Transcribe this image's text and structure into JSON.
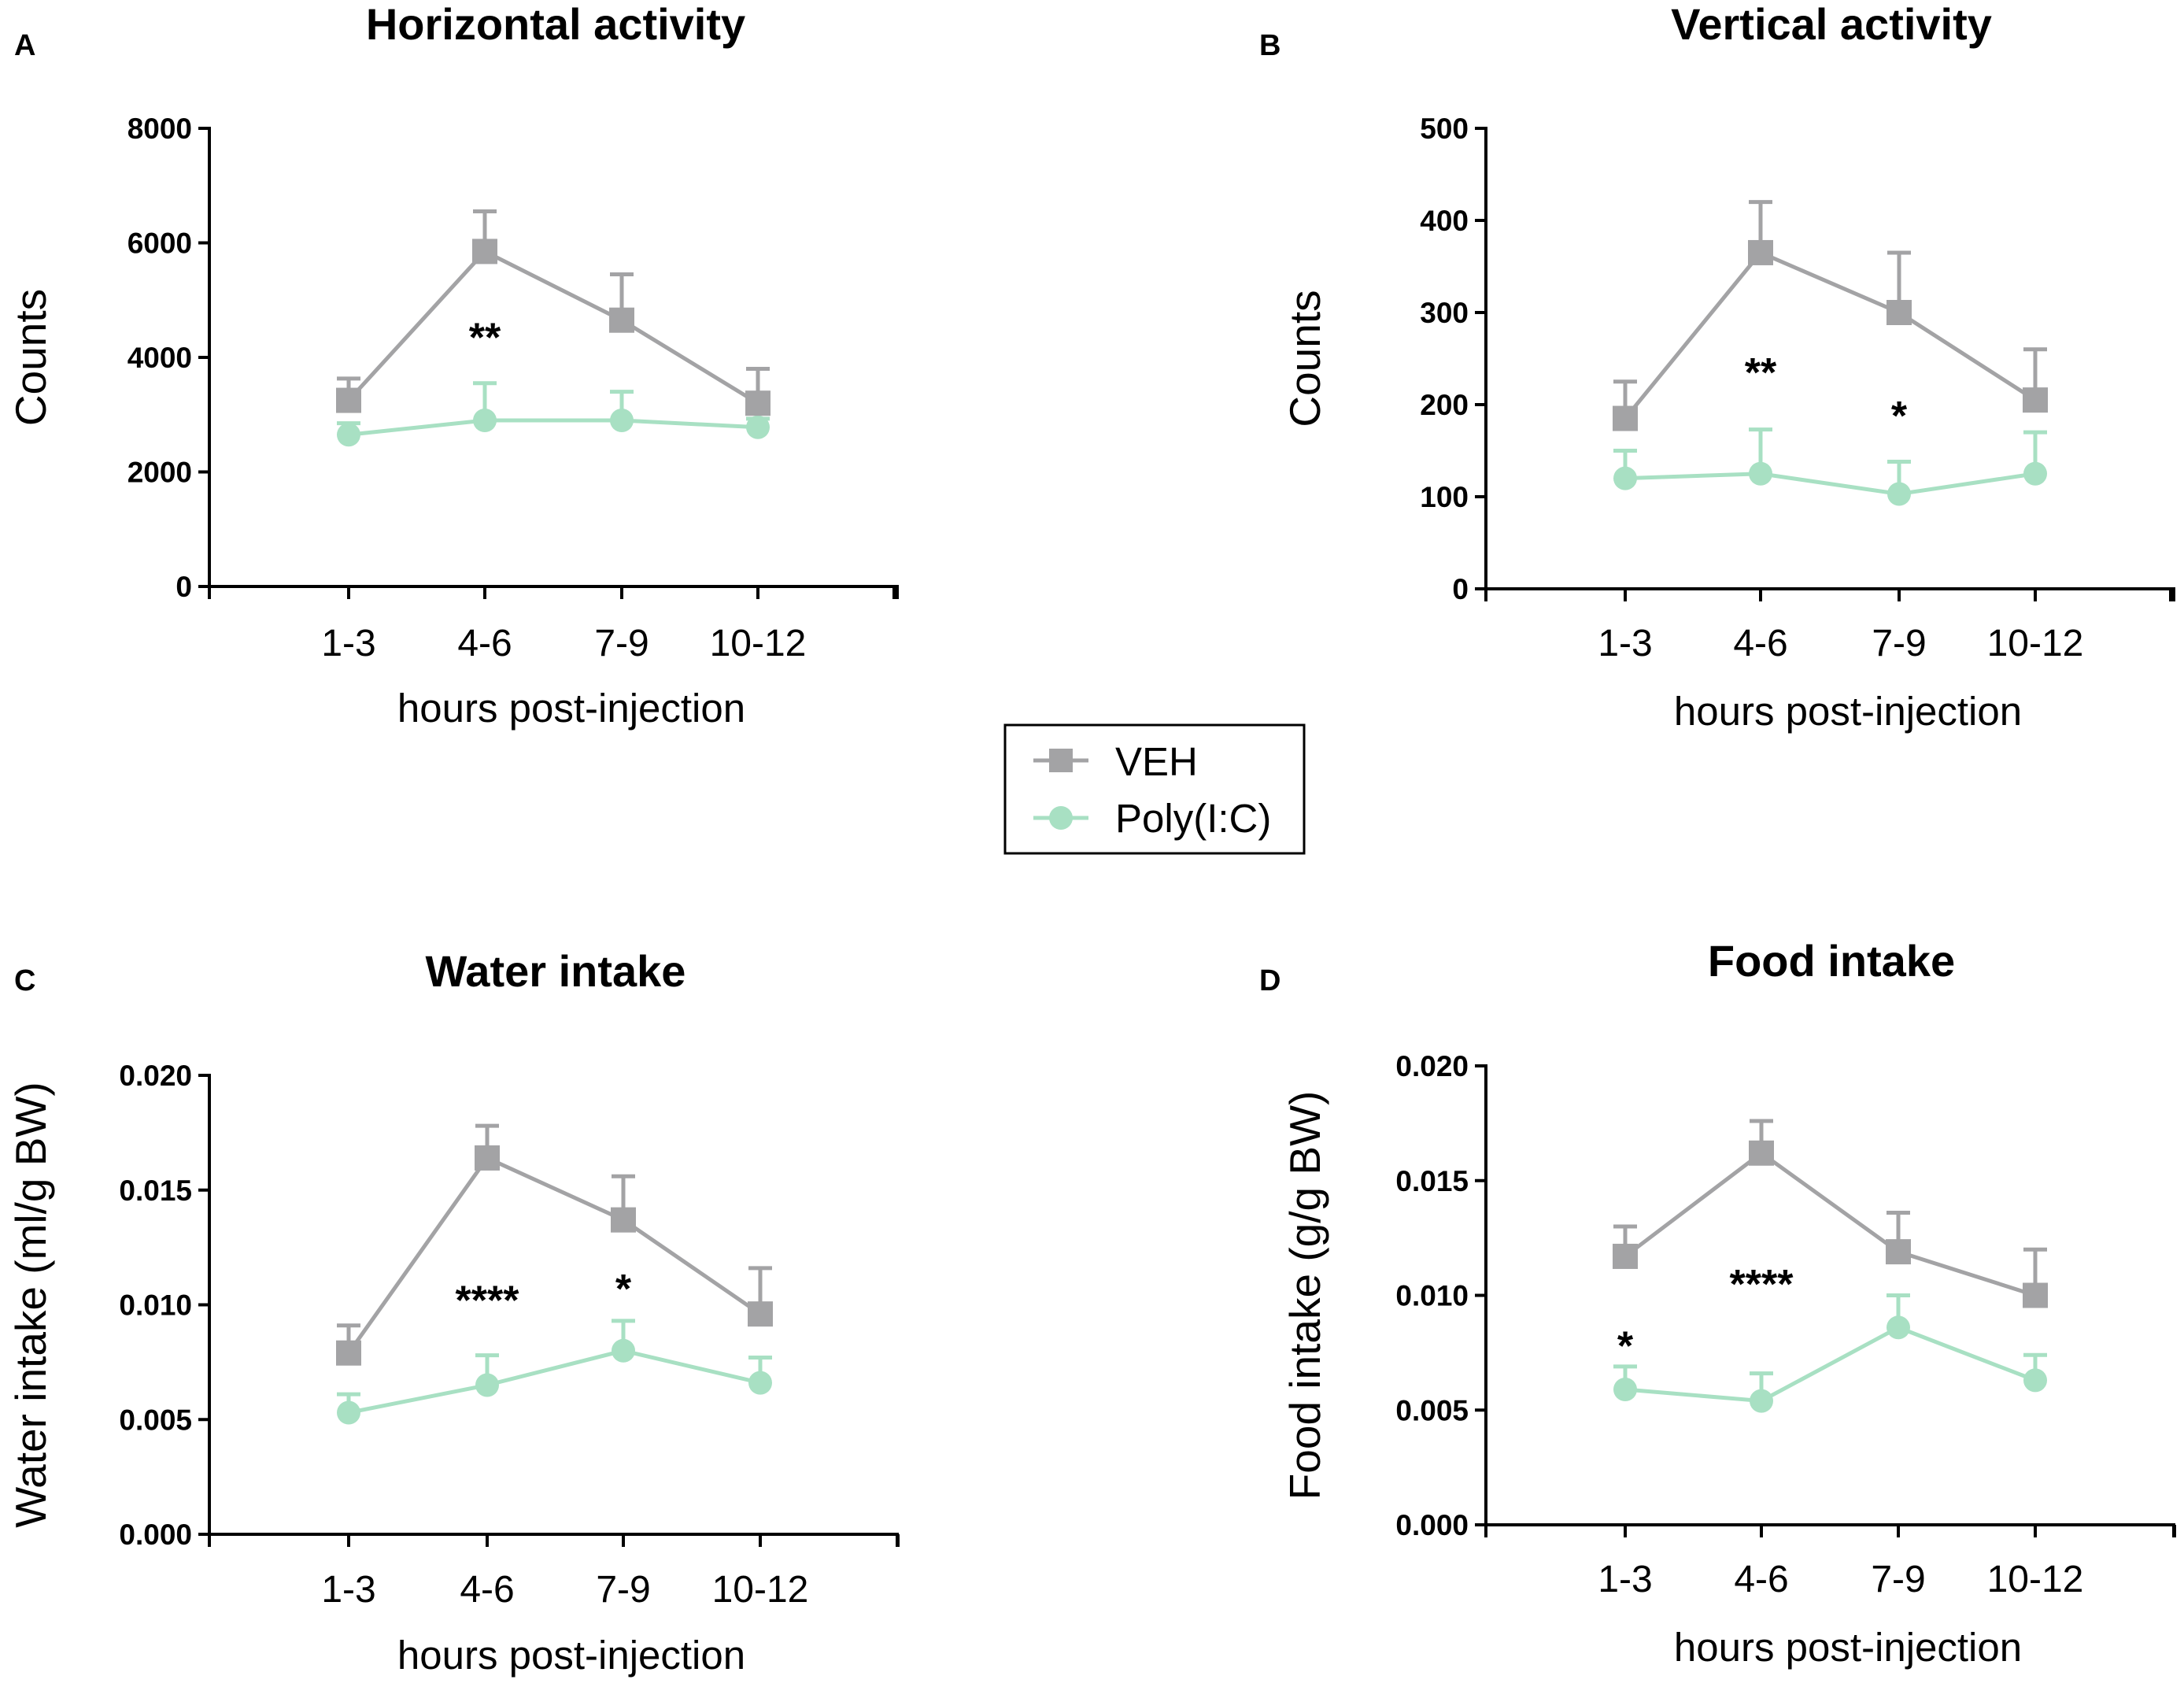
{
  "colors": {
    "veh": "#a3a3a5",
    "polyic": "#a8e0c3",
    "axis": "#000000"
  },
  "legend": {
    "items": [
      {
        "label": "VEH",
        "marker": "square",
        "color_key": "veh"
      },
      {
        "label": "Poly(I:C)",
        "marker": "circle",
        "color_key": "polyic"
      }
    ]
  },
  "chart_data": [
    {
      "letter": "A",
      "type": "line",
      "title": "Horizontal activity",
      "xlabel": "hours post-injection",
      "ylabel": "Counts",
      "categories": [
        "1-3",
        "4-6",
        "7-9",
        "10-12"
      ],
      "ylim": [
        0,
        8000
      ],
      "yticks": [
        "0",
        "2000",
        "4000",
        "6000",
        "8000"
      ],
      "series": [
        {
          "name": "VEH",
          "values": [
            3250,
            5850,
            4650,
            3200
          ],
          "err": [
            380,
            700,
            800,
            600
          ]
        },
        {
          "name": "Poly(I:C)",
          "values": [
            2650,
            2900,
            2900,
            2780
          ],
          "err": [
            200,
            650,
            500,
            150
          ]
        }
      ],
      "annotations": [
        {
          "text": "**",
          "category": "4-6",
          "y": 4350
        }
      ]
    },
    {
      "letter": "B",
      "type": "line",
      "title": "Vertical activity",
      "xlabel": "hours post-injection",
      "ylabel": "Counts",
      "categories": [
        "1-3",
        "4-6",
        "7-9",
        "10-12"
      ],
      "ylim": [
        0,
        500
      ],
      "yticks": [
        "0",
        "100",
        "200",
        "300",
        "400",
        "500"
      ],
      "series": [
        {
          "name": "VEH",
          "values": [
            185,
            365,
            300,
            205
          ],
          "err": [
            40,
            55,
            65,
            55
          ]
        },
        {
          "name": "Poly(I:C)",
          "values": [
            120,
            125,
            103,
            125
          ],
          "err": [
            30,
            48,
            35,
            45
          ]
        }
      ],
      "annotations": [
        {
          "text": "**",
          "category": "4-6",
          "y": 235
        },
        {
          "text": "*",
          "category": "7-9",
          "y": 188
        }
      ]
    },
    {
      "letter": "C",
      "type": "line",
      "title": "Water intake",
      "xlabel": "hours post-injection",
      "ylabel": "Water intake (ml/g BW)",
      "categories": [
        "1-3",
        "4-6",
        "7-9",
        "10-12"
      ],
      "ylim": [
        0,
        0.02
      ],
      "yticks": [
        "0.000",
        "0.005",
        "0.010",
        "0.015",
        "0.020"
      ],
      "series": [
        {
          "name": "VEH",
          "values": [
            0.0079,
            0.0164,
            0.0137,
            0.0096
          ],
          "err": [
            0.0012,
            0.0014,
            0.0019,
            0.002
          ]
        },
        {
          "name": "Poly(I:C)",
          "values": [
            0.0053,
            0.0065,
            0.008,
            0.0066
          ],
          "err": [
            0.0008,
            0.0013,
            0.0013,
            0.0011
          ]
        }
      ],
      "annotations": [
        {
          "text": "****",
          "category": "4-6",
          "y": 0.0102
        },
        {
          "text": "*",
          "category": "7-9",
          "y": 0.0107
        }
      ]
    },
    {
      "letter": "D",
      "type": "line",
      "title": "Food intake",
      "xlabel": "hours post-injection",
      "ylabel": "Food intake (g/g BW)",
      "categories": [
        "1-3",
        "4-6",
        "7-9",
        "10-12"
      ],
      "ylim": [
        0,
        0.02
      ],
      "yticks": [
        "0.000",
        "0.005",
        "0.010",
        "0.015",
        "0.020"
      ],
      "series": [
        {
          "name": "VEH",
          "values": [
            0.0117,
            0.0162,
            0.0119,
            0.01
          ],
          "err": [
            0.0013,
            0.0014,
            0.0017,
            0.002
          ]
        },
        {
          "name": "Poly(I:C)",
          "values": [
            0.0059,
            0.0054,
            0.0086,
            0.0063
          ],
          "err": [
            0.001,
            0.0012,
            0.0014,
            0.0011
          ]
        }
      ],
      "annotations": [
        {
          "text": "*",
          "category": "1-3",
          "y": 0.0078
        },
        {
          "text": "****",
          "category": "4-6",
          "y": 0.0105
        }
      ]
    }
  ]
}
